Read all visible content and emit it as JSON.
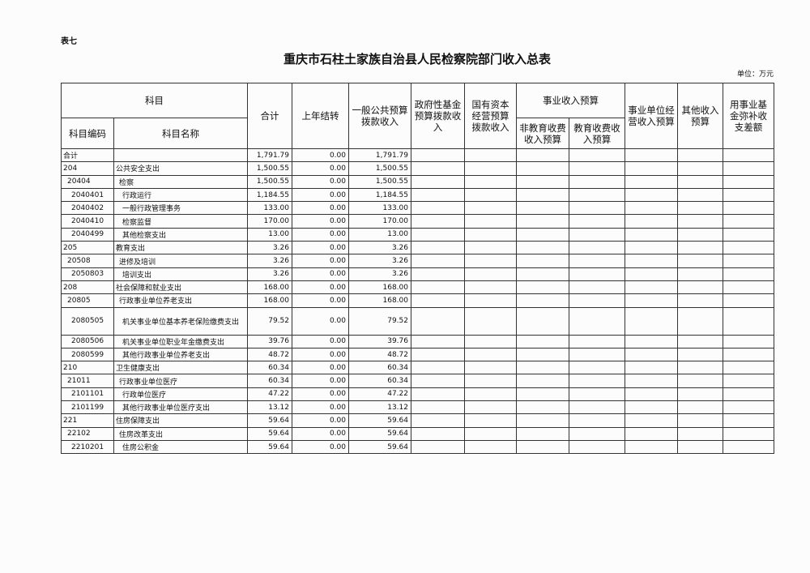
{
  "header": {
    "label": "表七",
    "title": "重庆市石柱土家族自治县人民检察院部门收入总表",
    "unit": "单位：万元"
  },
  "table": {
    "columns": {
      "subject": "科目",
      "code": "科目编码",
      "name": "科目名称",
      "total": "合计",
      "carryover": "上年结转",
      "general_budget": "一般公共预算拨款收入",
      "fund_budget": "政府性基金预算拨款收入",
      "capital_budget": "国有资本经营预算拨款收入",
      "business_income": "事业收入预算",
      "non_edu_fee": "非教育收费收入预算",
      "edu_fee": "教育收费收入预算",
      "operating_income": "事业单位经营收入预算",
      "other_income": "其他收入预算",
      "fund_supplement": "用事业基金弥补收支差额"
    },
    "rows": [
      {
        "code": "合计",
        "total": "1,791.79",
        "carryover": "0.00",
        "general_budget": "1,791.79"
      },
      {
        "code": "204",
        "name": "公共安全支出",
        "total": "1,500.55",
        "carryover": "0.00",
        "general_budget": "1,500.55"
      },
      {
        "code": "20404",
        "name": "检察",
        "total": "1,500.55",
        "carryover": "0.00",
        "general_budget": "1,500.55"
      },
      {
        "code": "2040401",
        "name": "行政运行",
        "total": "1,184.55",
        "carryover": "0.00",
        "general_budget": "1,184.55"
      },
      {
        "code": "2040402",
        "name": "一般行政管理事务",
        "total": "133.00",
        "carryover": "0.00",
        "general_budget": "133.00"
      },
      {
        "code": "2040410",
        "name": "检察监督",
        "total": "170.00",
        "carryover": "0.00",
        "general_budget": "170.00"
      },
      {
        "code": "2040499",
        "name": "其他检察支出",
        "total": "13.00",
        "carryover": "0.00",
        "general_budget": "13.00"
      },
      {
        "code": "205",
        "name": "教育支出",
        "total": "3.26",
        "carryover": "0.00",
        "general_budget": "3.26"
      },
      {
        "code": "20508",
        "name": "进修及培训",
        "total": "3.26",
        "carryover": "0.00",
        "general_budget": "3.26"
      },
      {
        "code": "2050803",
        "name": "培训支出",
        "total": "3.26",
        "carryover": "0.00",
        "general_budget": "3.26"
      },
      {
        "code": "208",
        "name": "社会保障和就业支出",
        "total": "168.00",
        "carryover": "0.00",
        "general_budget": "168.00"
      },
      {
        "code": "20805",
        "name": "行政事业单位养老支出",
        "total": "168.00",
        "carryover": "0.00",
        "general_budget": "168.00"
      },
      {
        "code": "2080505",
        "name": "机关事业单位基本养老保险缴费支出",
        "total": "79.52",
        "carryover": "0.00",
        "general_budget": "79.52"
      },
      {
        "code": "2080506",
        "name": "机关事业单位职业年金缴费支出",
        "total": "39.76",
        "carryover": "0.00",
        "general_budget": "39.76"
      },
      {
        "code": "2080599",
        "name": "其他行政事业单位养老支出",
        "total": "48.72",
        "carryover": "0.00",
        "general_budget": "48.72"
      },
      {
        "code": "210",
        "name": "卫生健康支出",
        "total": "60.34",
        "carryover": "0.00",
        "general_budget": "60.34"
      },
      {
        "code": "21011",
        "name": "行政事业单位医疗",
        "total": "60.34",
        "carryover": "0.00",
        "general_budget": "60.34"
      },
      {
        "code": "2101101",
        "name": "行政单位医疗",
        "total": "47.22",
        "carryover": "0.00",
        "general_budget": "47.22"
      },
      {
        "code": "2101199",
        "name": "其他行政事业单位医疗支出",
        "total": "13.12",
        "carryover": "0.00",
        "general_budget": "13.12"
      },
      {
        "code": "221",
        "name": "住房保障支出",
        "total": "59.64",
        "carryover": "0.00",
        "general_budget": "59.64"
      },
      {
        "code": "22102",
        "name": "住房改革支出",
        "total": "59.64",
        "carryover": "0.00",
        "general_budget": "59.64"
      },
      {
        "code": "2210201",
        "name": "住房公积金",
        "total": "59.64",
        "carryover": "0.00",
        "general_budget": "59.64"
      }
    ]
  }
}
